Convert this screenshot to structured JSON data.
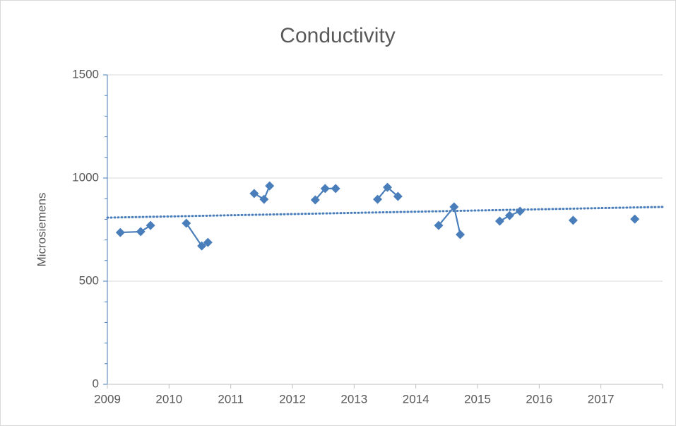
{
  "chart_data": {
    "type": "line",
    "title": "Conductivity",
    "y_label": "Microsiemens",
    "series": [
      {
        "color": "#4a7ebb",
        "x": [
          2009.21,
          2009.54,
          2009.7,
          null,
          2010.28,
          2010.53,
          2010.63,
          null,
          2011.38,
          2011.54,
          2011.63,
          null,
          2012.37,
          2012.53,
          2012.7,
          null,
          2013.38,
          2013.54,
          2013.71,
          null,
          2014.37,
          2014.62,
          2014.72,
          null,
          2015.36,
          2015.52,
          2015.69,
          null,
          2016.55,
          null,
          2017.55
        ],
        "values": [
          736,
          740,
          770,
          null,
          781,
          671,
          688,
          null,
          925,
          897,
          962,
          null,
          894,
          949,
          949,
          null,
          897,
          955,
          911,
          null,
          770,
          860,
          726,
          null,
          791,
          818,
          839,
          null,
          795,
          null,
          801
        ]
      }
    ],
    "trendline": {
      "color": "#4a7ebb",
      "x": [
        2009,
        2018
      ],
      "values": [
        808,
        860
      ]
    },
    "xlim": [
      2009,
      2018
    ],
    "xticks": [
      2009,
      2010,
      2011,
      2012,
      2013,
      2014,
      2015,
      2016,
      2017
    ],
    "ylim": [
      0,
      1500
    ],
    "yticks": [
      0,
      500,
      1000,
      1500
    ],
    "yminorticks": [
      100,
      200,
      300,
      400,
      600,
      700,
      800,
      900,
      1100,
      1200,
      1300,
      1400
    ],
    "grid": true
  }
}
